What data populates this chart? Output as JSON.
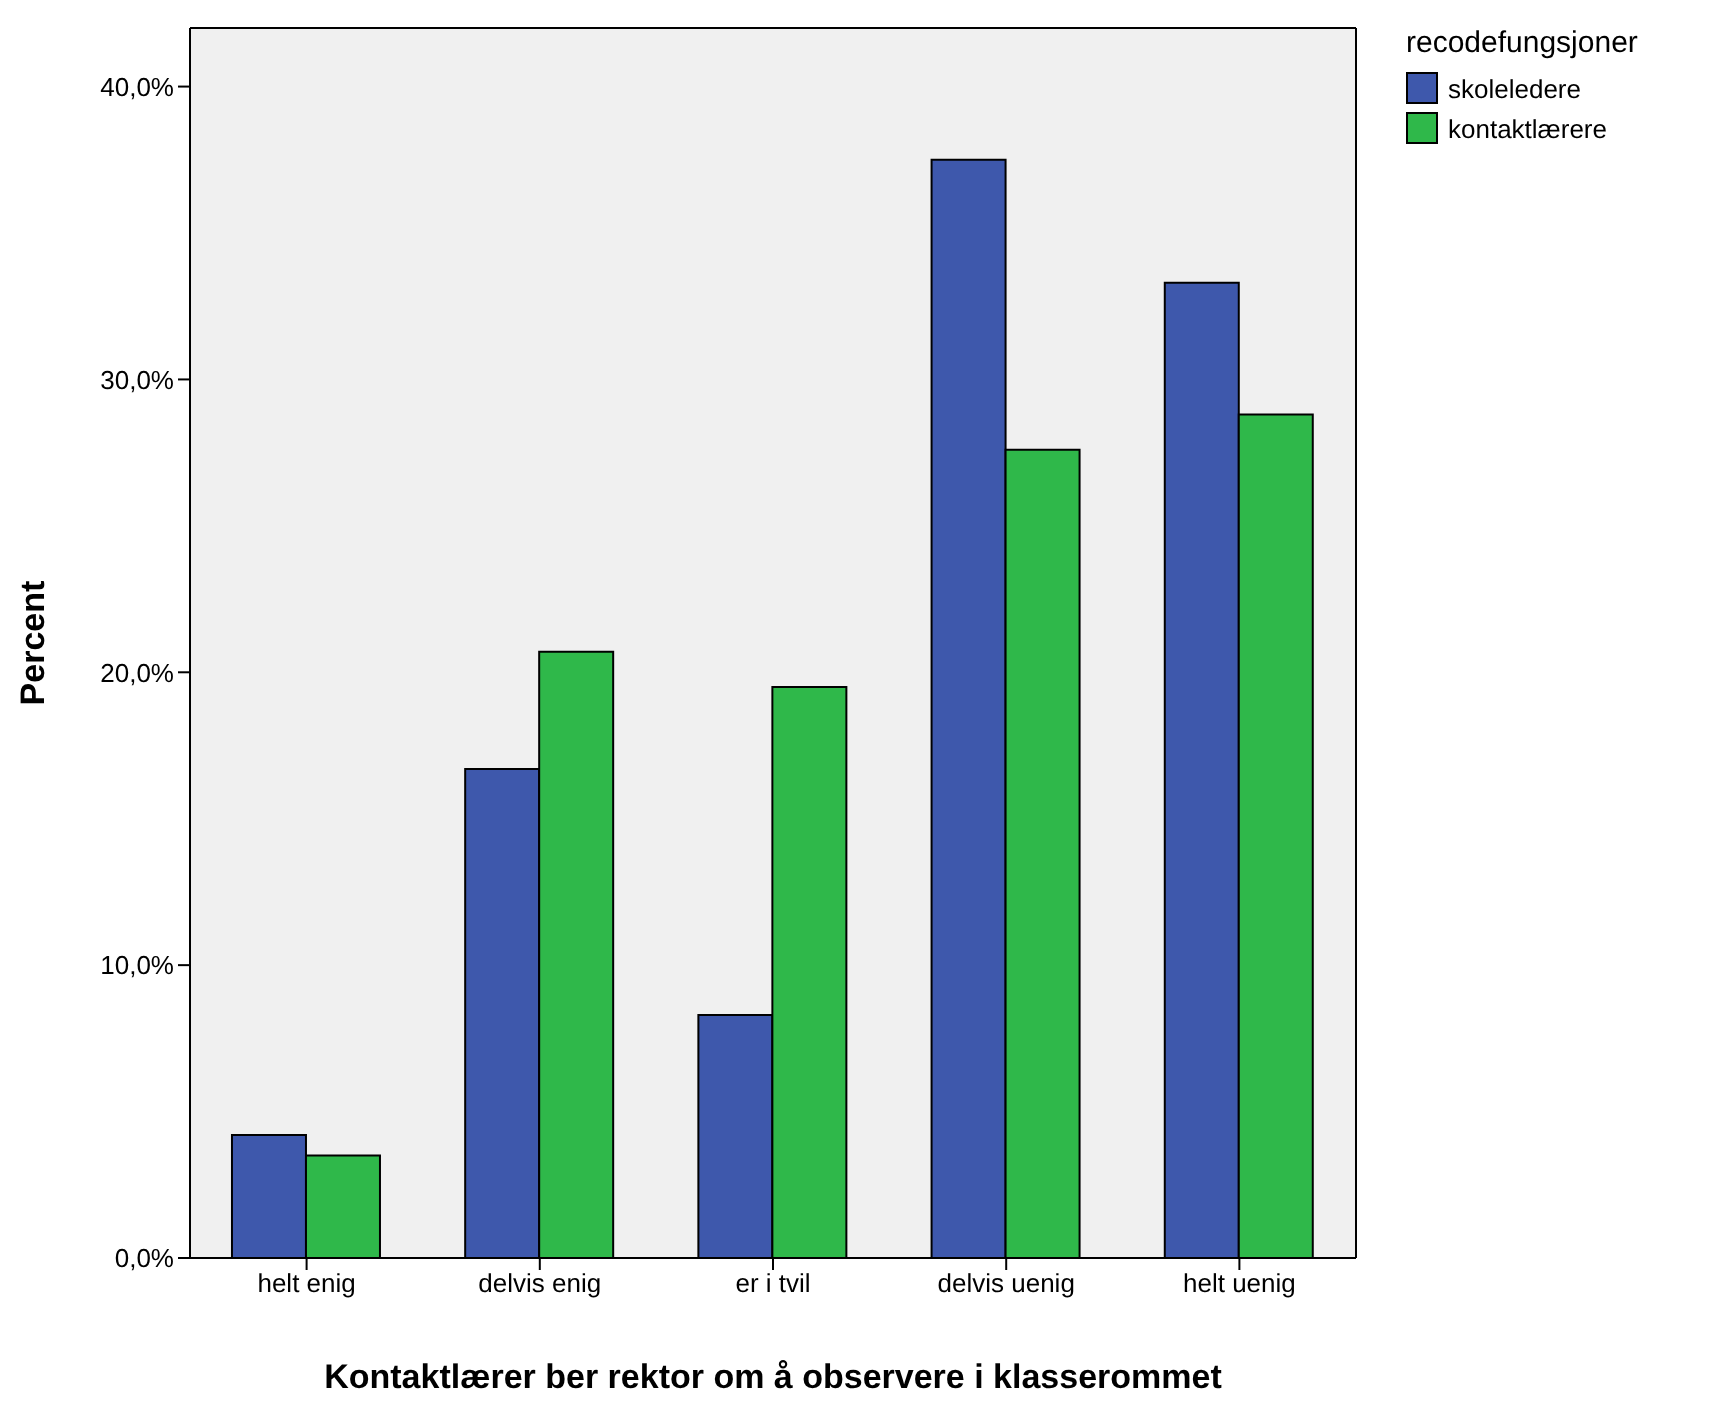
{
  "chart_data": {
    "type": "bar",
    "xlabel": "Kontaktlærer ber rektor om å observere i klasserommet",
    "ylabel": "Percent",
    "legend_title": "recodefungsjoner",
    "categories": [
      "helt enig",
      "delvis enig",
      "er i tvil",
      "delvis uenig",
      "helt uenig"
    ],
    "series": [
      {
        "name": "skoleledere",
        "color": "#3e58ac",
        "values": [
          4.2,
          16.7,
          8.3,
          37.5,
          33.3
        ]
      },
      {
        "name": "kontaktlærere",
        "color": "#2fb84a",
        "values": [
          3.5,
          20.7,
          19.5,
          27.6,
          28.8
        ]
      }
    ],
    "ylim": [
      0,
      42
    ],
    "yticks": [
      {
        "value": 0,
        "label": "0,0%"
      },
      {
        "value": 10,
        "label": "10,0%"
      },
      {
        "value": 20,
        "label": "20,0%"
      },
      {
        "value": 30,
        "label": "30,0%"
      },
      {
        "value": 40,
        "label": "40,0%"
      }
    ],
    "grid": false,
    "legend": "top right"
  }
}
